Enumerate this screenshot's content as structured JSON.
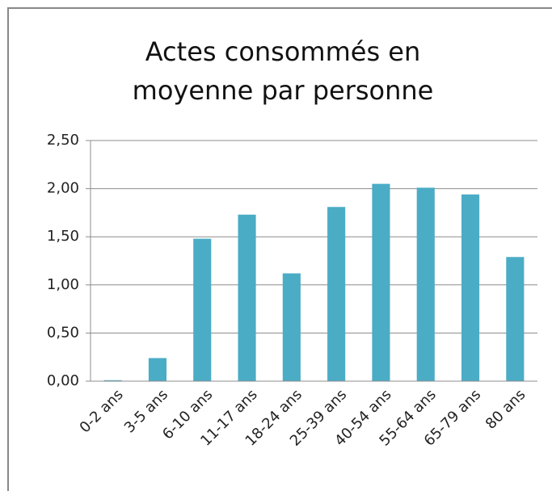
{
  "chart_data": {
    "type": "bar",
    "title": "Actes consommés en moyenne par personne",
    "categories": [
      "0-2 ans",
      "3-5 ans",
      "6-10 ans",
      "11-17 ans",
      "18-24 ans",
      "25-39 ans",
      "40-54 ans",
      "55-64 ans",
      "65-79 ans",
      "80 ans"
    ],
    "values": [
      0.01,
      0.24,
      1.48,
      1.73,
      1.12,
      1.81,
      2.05,
      2.01,
      1.94,
      1.29
    ],
    "color": "#4bacc6",
    "ylim": [
      0,
      2.5
    ],
    "yticks": [
      {
        "value": 0,
        "label": "0,00"
      },
      {
        "value": 0.5,
        "label": "0,50"
      },
      {
        "value": 1,
        "label": "1,00"
      },
      {
        "value": 1.5,
        "label": "1,50"
      },
      {
        "value": 2,
        "label": "2,00"
      },
      {
        "value": 2.5,
        "label": "2,50"
      }
    ],
    "grid": true
  }
}
